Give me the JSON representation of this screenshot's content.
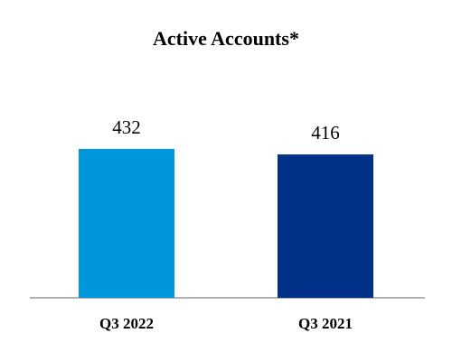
{
  "chart_data": {
    "type": "bar",
    "title": "Active Accounts*",
    "categories": [
      "Q3 2022",
      "Q3 2021"
    ],
    "values": [
      432,
      416
    ],
    "colors": [
      "#0096db",
      "#003087"
    ]
  }
}
